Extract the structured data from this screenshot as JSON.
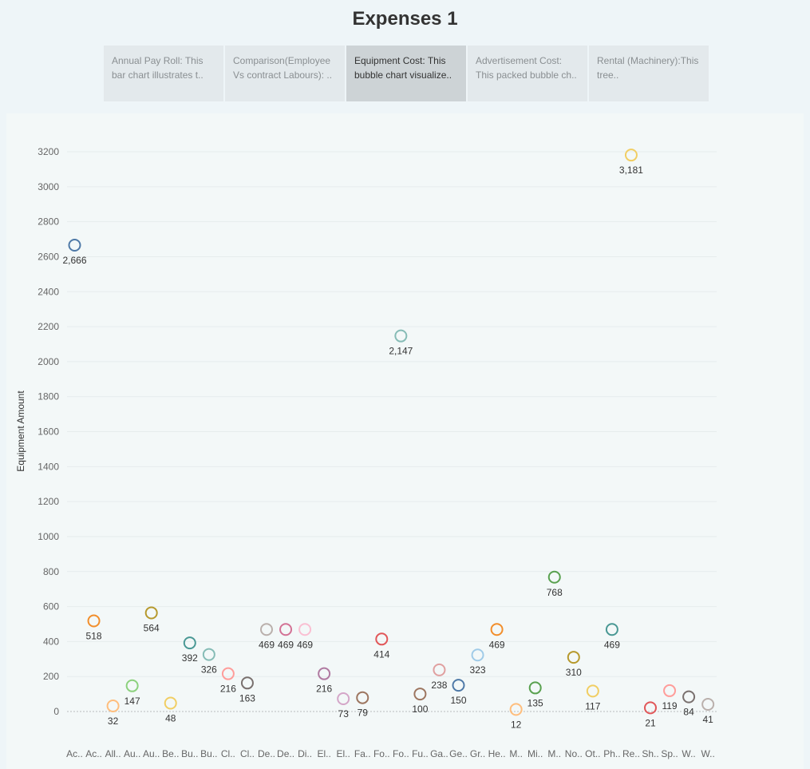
{
  "dashboard_title": "Expenses 1",
  "tabs": [
    {
      "label": "Annual Pay Roll: This bar chart illustrates t..",
      "active": false
    },
    {
      "label": "Comparison(Employee Vs contract Labours): ..",
      "active": false
    },
    {
      "label": "Equipment Cost: This bubble chart visualize..",
      "active": true
    },
    {
      "label": "Advertisement Cost: This packed bubble ch..",
      "active": false
    },
    {
      "label": "Rental (Machinery):This tree..",
      "active": false
    }
  ],
  "chart_data": {
    "type": "scatter",
    "title": "",
    "xlabel": "",
    "ylabel": "Equipment Amount",
    "ylim": [
      -150,
      3400
    ],
    "yticks": [
      0,
      200,
      400,
      600,
      800,
      1000,
      1200,
      1400,
      1600,
      1800,
      2000,
      2200,
      2400,
      2600,
      2800,
      3000,
      3200
    ],
    "grid": true,
    "points": [
      {
        "category": "Ac..",
        "value": 2666,
        "label": "2,666",
        "color": "#4e79a7"
      },
      {
        "category": "Ac..",
        "value": 518,
        "label": "518",
        "color": "#f28e2b"
      },
      {
        "category": "All..",
        "value": 32,
        "label": "32",
        "color": "#ffbe7d"
      },
      {
        "category": "Au..",
        "value": 147,
        "label": "147",
        "color": "#8cd17d"
      },
      {
        "category": "Au..",
        "value": 564,
        "label": "564",
        "color": "#b6992d"
      },
      {
        "category": "Be..",
        "value": 48,
        "label": "48",
        "color": "#f1ce63"
      },
      {
        "category": "Bu..",
        "value": 392,
        "label": "392",
        "color": "#499894"
      },
      {
        "category": "Bu..",
        "value": 326,
        "label": "326",
        "color": "#86bcb6"
      },
      {
        "category": "Cl..",
        "value": 216,
        "label": "216",
        "color": "#ff9d9a"
      },
      {
        "category": "Cl..",
        "value": 163,
        "label": "163",
        "color": "#79706e"
      },
      {
        "category": "De..",
        "value": 469,
        "label": "469",
        "color": "#bab0ac"
      },
      {
        "category": "De..",
        "value": 469,
        "label": "469",
        "color": "#d37295"
      },
      {
        "category": "Di..",
        "value": 469,
        "label": "469",
        "color": "#fabfd2"
      },
      {
        "category": "El..",
        "value": 216,
        "label": "216",
        "color": "#b07aa1"
      },
      {
        "category": "El..",
        "value": 73,
        "label": "73",
        "color": "#d4a6c8"
      },
      {
        "category": "Fa..",
        "value": 79,
        "label": "79",
        "color": "#9d7660"
      },
      {
        "category": "Fo..",
        "value": 414,
        "label": "414",
        "color": "#e15759"
      },
      {
        "category": "Fo..",
        "value": 2147,
        "label": "2,147",
        "color": "#86bcb6"
      },
      {
        "category": "Fu..",
        "value": 100,
        "label": "100",
        "color": "#9d7660"
      },
      {
        "category": "Ga..",
        "value": 238,
        "label": "238",
        "color": "#e0a0a0"
      },
      {
        "category": "Ge..",
        "value": 150,
        "label": "150",
        "color": "#4e79a7"
      },
      {
        "category": "Gr..",
        "value": 323,
        "label": "323",
        "color": "#a0cbe8"
      },
      {
        "category": "He..",
        "value": 469,
        "label": "469",
        "color": "#f28e2b"
      },
      {
        "category": "M..",
        "value": 12,
        "label": "12",
        "color": "#ffbe7d"
      },
      {
        "category": "Mi..",
        "value": 135,
        "label": "135",
        "color": "#59a14f"
      },
      {
        "category": "M..",
        "value": 768,
        "label": "768",
        "color": "#59a14f"
      },
      {
        "category": "No..",
        "value": 310,
        "label": "310",
        "color": "#b6992d"
      },
      {
        "category": "Ot..",
        "value": 117,
        "label": "117",
        "color": "#f1ce63"
      },
      {
        "category": "Ph..",
        "value": 469,
        "label": "469",
        "color": "#499894"
      },
      {
        "category": "Re..",
        "value": 3181,
        "label": "3,181",
        "color": "#f1ce63"
      },
      {
        "category": "Sh..",
        "value": 21,
        "label": "21",
        "color": "#e15759"
      },
      {
        "category": "Sp..",
        "value": 119,
        "label": "119",
        "color": "#ff9d9a"
      },
      {
        "category": "W..",
        "value": 84,
        "label": "84",
        "color": "#79706e"
      },
      {
        "category": "W..",
        "value": 41,
        "label": "41",
        "color": "#bab0ac"
      }
    ]
  }
}
